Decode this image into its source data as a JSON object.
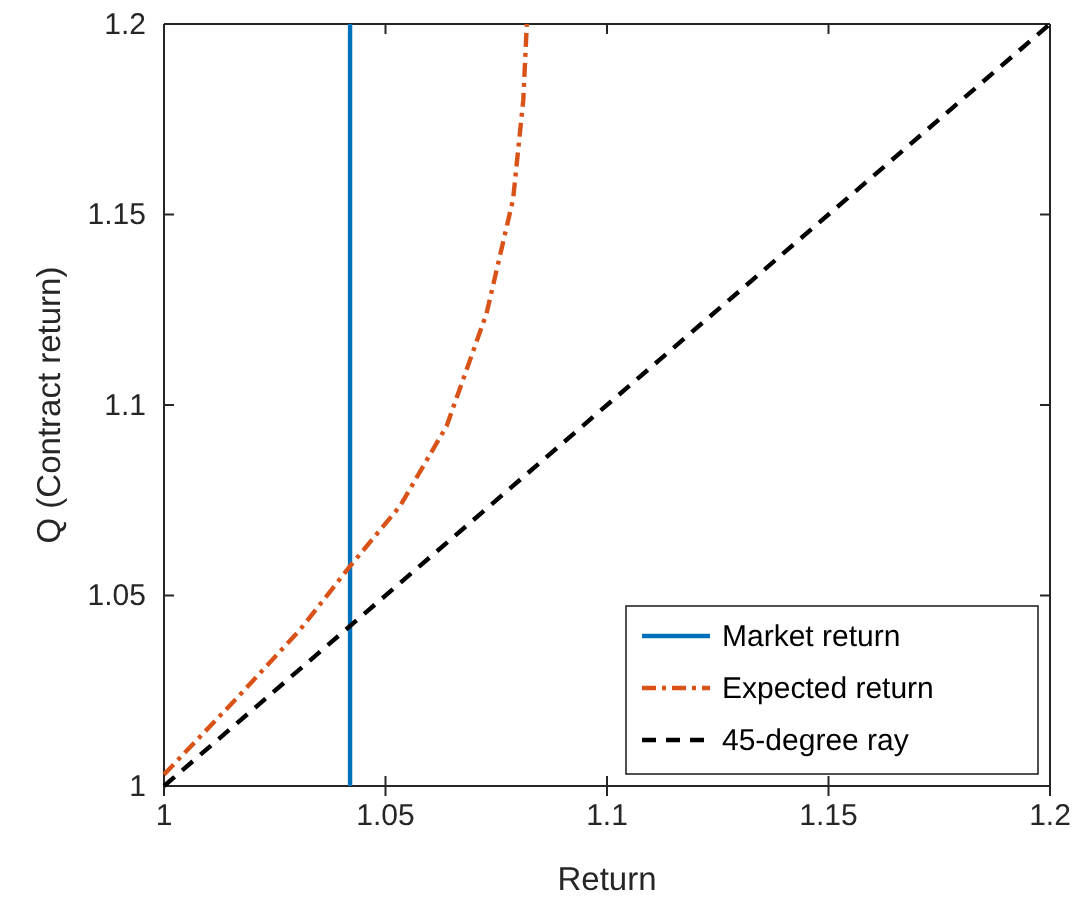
{
  "chart_data": {
    "type": "line",
    "xlabel": "Return",
    "ylabel": "Q (Contract return)",
    "xlim": [
      1,
      1.2
    ],
    "ylim": [
      1,
      1.2
    ],
    "xticks": [
      1,
      1.05,
      1.1,
      1.15,
      1.2
    ],
    "yticks": [
      1,
      1.05,
      1.1,
      1.15,
      1.2
    ],
    "grid": false,
    "legend": "bottom right",
    "marker": "none",
    "series": [
      {
        "name": "Market return",
        "color": "#0072bd",
        "line_style": "solid",
        "x": [
          1.042,
          1.042
        ],
        "values": [
          1,
          1.2
        ]
      },
      {
        "name": "Expected return",
        "color": "#d95319",
        "line_style": "dashdot",
        "x": [
          1,
          1.0172,
          1.0307,
          1.042,
          1.0533,
          1.0638,
          1.0728,
          1.0788,
          1.0811,
          1.0819
        ],
        "values": [
          1.003,
          1.024,
          1.041,
          1.0577,
          1.0735,
          1.0945,
          1.124,
          1.154,
          1.18,
          1.2
        ]
      },
      {
        "name": "45-degree ray",
        "color": "#000000",
        "line_style": "dashed",
        "x": [
          1,
          1.2
        ],
        "values": [
          1,
          1.2
        ]
      }
    ]
  }
}
